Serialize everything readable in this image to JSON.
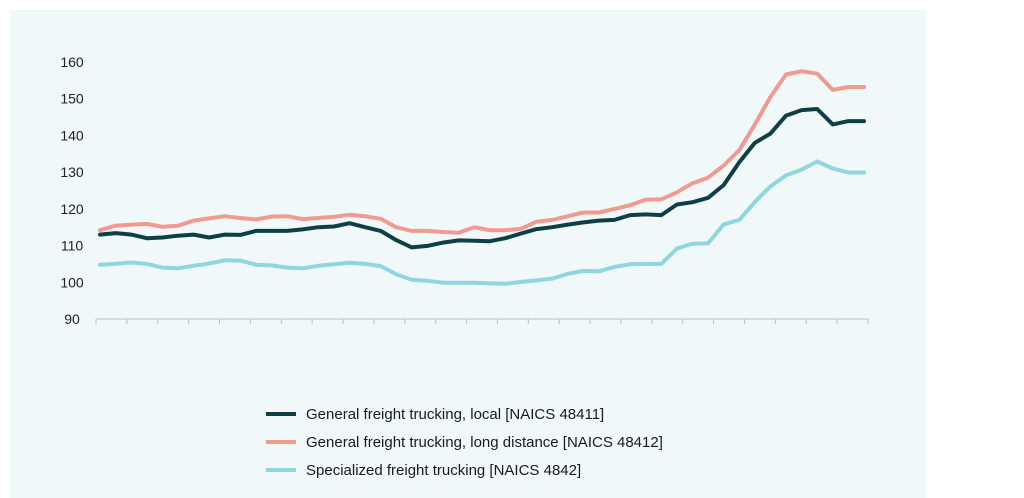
{
  "chart_data": {
    "type": "line",
    "title": "",
    "xlabel": "",
    "ylabel": "",
    "ylim": [
      90,
      160
    ],
    "yticks": [
      90,
      100,
      110,
      120,
      130,
      140,
      150,
      160
    ],
    "grid": false,
    "legend_placement": "bottom",
    "x": [
      1,
      2,
      3,
      4,
      5,
      6,
      7,
      8,
      9,
      10,
      11,
      12,
      13,
      14,
      15,
      16,
      17,
      18,
      19,
      20,
      21,
      22,
      23,
      24,
      25,
      26,
      27,
      28,
      29,
      30,
      31,
      32,
      33,
      34,
      35,
      36,
      37,
      38,
      39,
      40,
      41,
      42,
      43,
      44,
      45,
      46,
      47,
      48,
      49,
      50
    ],
    "series": [
      {
        "name": "General freight trucking, local [NAICS 48411]",
        "color": "#0f3f45",
        "values": [
          113,
          113.4,
          113,
          112,
          112.2,
          112.7,
          113,
          112.2,
          113,
          112.9,
          114,
          114,
          114,
          114.4,
          115,
          115.2,
          116.1,
          115,
          114,
          111.5,
          109.5,
          109.9,
          110.8,
          111.4,
          111.3,
          111.2,
          112,
          113.3,
          114.5,
          115,
          115.7,
          116.3,
          116.8,
          117,
          118.3,
          118.5,
          118.3,
          121.2,
          121.8,
          123,
          126.5,
          132.7,
          138,
          140.5,
          145.4,
          146.9,
          147.2,
          143,
          143.9,
          143.9
        ]
      },
      {
        "name": "General freight trucking, long distance [NAICS 48412]",
        "color": "#f19a92",
        "values": [
          114.2,
          115.4,
          115.7,
          115.9,
          115.1,
          115.4,
          116.8,
          117.4,
          118,
          117.5,
          117.1,
          117.9,
          118,
          117.2,
          117.5,
          117.8,
          118.4,
          118,
          117.3,
          115,
          114,
          114,
          113.7,
          113.5,
          115,
          114.2,
          114.2,
          114.6,
          116.5,
          117,
          118,
          119,
          119,
          120,
          121,
          122.5,
          122.6,
          124.5,
          127,
          128.5,
          131.8,
          136,
          143,
          150.5,
          156.6,
          157.5,
          156.8,
          152.4,
          153.2,
          153.2
        ]
      },
      {
        "name": "Specialized freight trucking [NAICS 4842]",
        "color": "#8fd6df",
        "values": [
          104.8,
          105,
          105.4,
          105,
          104,
          103.8,
          104.5,
          105.1,
          106,
          105.9,
          104.8,
          104.6,
          104,
          103.8,
          104.5,
          104.9,
          105.3,
          105,
          104.4,
          102.2,
          100.7,
          100.4,
          99.9,
          99.9,
          99.9,
          99.7,
          99.6,
          100.1,
          100.5,
          101,
          102.3,
          103.1,
          103,
          104.2,
          104.9,
          105,
          105,
          109.2,
          110.5,
          110.6,
          115.8,
          117,
          121.9,
          126.1,
          129.1,
          130.7,
          132.9,
          131,
          129.9,
          129.9
        ]
      }
    ]
  }
}
